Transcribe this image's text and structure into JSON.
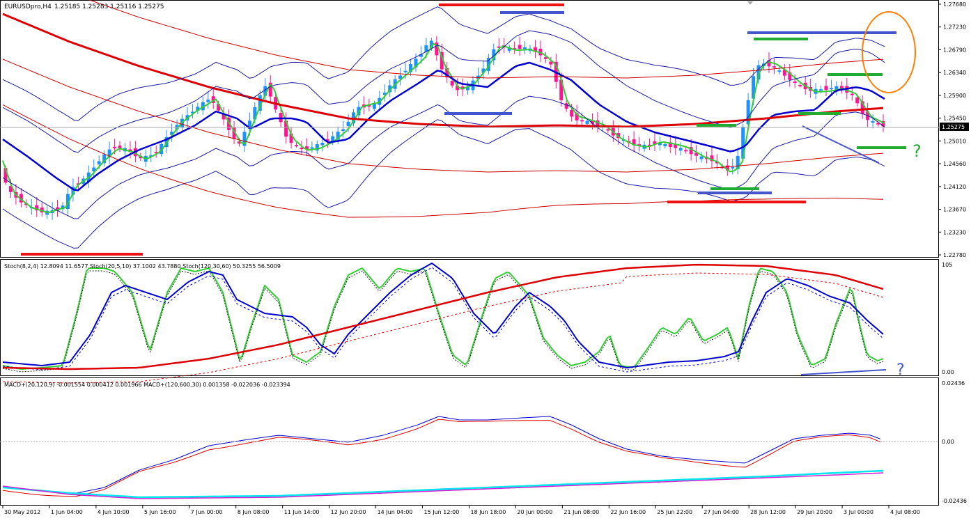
{
  "window": {
    "symbol_label": "EURUSDpro,H4",
    "ohlc_label": "1.25185 1.25283 1.25116 1.25275"
  },
  "price_axis": {
    "ticks": [
      "1.27680",
      "1.27230",
      "1.26790",
      "1.26340",
      "1.25900",
      "1.25450",
      "1.25010",
      "1.24560",
      "1.24120",
      "1.23670",
      "1.23230",
      "1.22780"
    ],
    "current_price": "1.25275",
    "min": 1.2278,
    "max": 1.2768
  },
  "stoch_panel": {
    "label": "Stoch(8,2,4) 12.8094 11.6577  Stoch(20,5,10) 37.1002 43.7880  Stoch(120,30,60) 50.3255 56.5009",
    "top_label": "105",
    "bottom_label": "0.00"
  },
  "macd_panel": {
    "label": "MACD+(20,120,9) -0.001554 0.000412 0.001966  MACD+(120,600,30) 0.001358 -0.022036 -0.023394",
    "top_label": "0.02436",
    "mid_label": "0.00",
    "bottom_label": "-0.02436"
  },
  "time_axis": {
    "labels": [
      "30 May 2012",
      "1 Jun 04:00",
      "4 Jun 10:00",
      "5 Jun 16:00",
      "7 Jun 00:00",
      "8 Jun 08:00",
      "11 Jun 14:00",
      "12 Jun 20:00",
      "14 Jun 04:00",
      "15 Jun 12:00",
      "18 Jun 18:00",
      "20 Jun 00:00",
      "21 Jun 08:00",
      "22 Jun 16:00",
      "25 Jun 22:00",
      "27 Jun 04:00",
      "28 Jun 12:00",
      "29 Jun 20:00",
      "3 Jul 00:00",
      "4 Jul 08:00"
    ]
  },
  "annotations": {
    "question_marks": [
      "?",
      "?"
    ]
  },
  "colors": {
    "bull": "#1e90ff",
    "bear": "#ff1493",
    "green": "#32cd32",
    "blue": "#0000cd",
    "red": "#dd0000",
    "thin_blue": "#1a1aa0",
    "thin_red": "#cc0000",
    "cyan": "#00e5ee",
    "magenta": "#d020d0",
    "orange": "#ff7f00",
    "hline_red": "#ee1111",
    "hline_blue": "#4455cc",
    "hline_green": "#22aa33"
  }
}
